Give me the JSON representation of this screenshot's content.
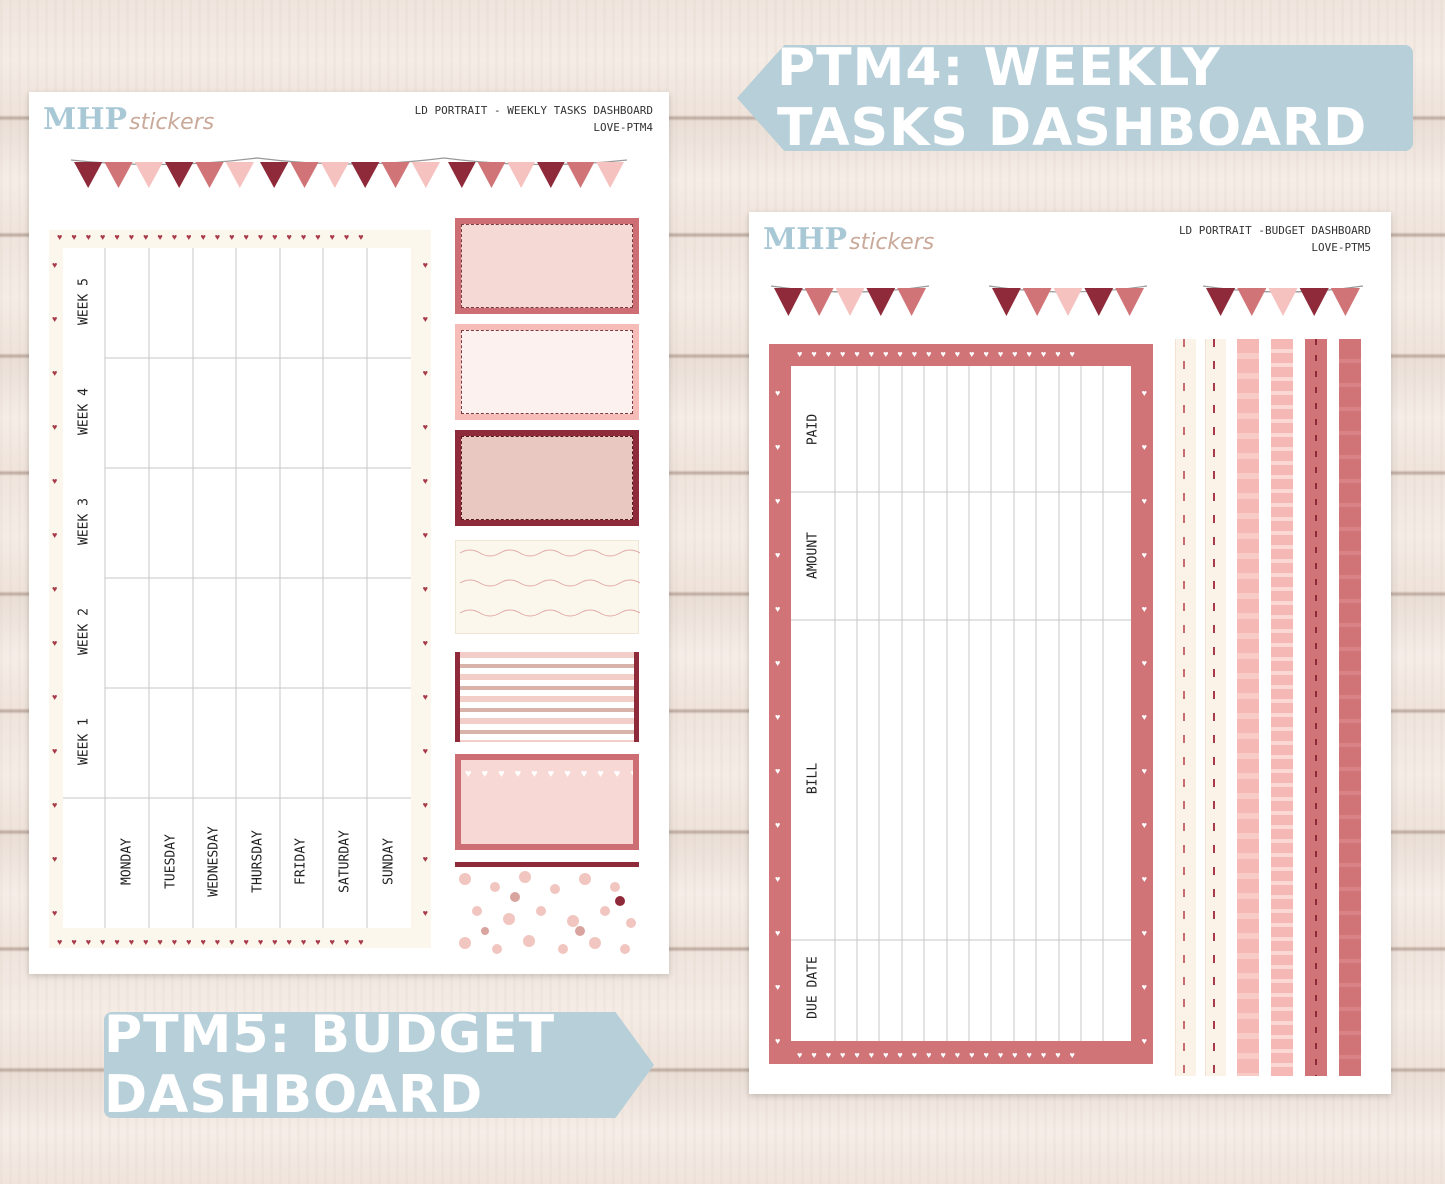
{
  "banners": {
    "ptm4": "PTM4: WEEKLY TASKS DASHBOARD",
    "ptm5": "PTM5: BUDGET DASHBOARD"
  },
  "colors": {
    "banner": "#b6cfd8",
    "rose": "#d07478",
    "wine": "#8e2a3a",
    "blush": "#f5c2c0",
    "cream": "#fbf7ec"
  },
  "sheet1": {
    "logo_main": "MHP",
    "logo_script": "stickers",
    "title_line1": "LD PORTRAIT - WEEKLY TASKS DASHBOARD",
    "title_line2": "LOVE-PTM4",
    "weeks": [
      "WEEK 5",
      "WEEK 4",
      "WEEK 3",
      "WEEK 2",
      "WEEK 1"
    ],
    "days": [
      "MONDAY",
      "TUESDAY",
      "WEDNESDAY",
      "THURSDAY",
      "FRIDAY",
      "SATURDAY",
      "SUNDAY"
    ]
  },
  "sheet2": {
    "logo_main": "MHP",
    "logo_script": "stickers",
    "title_line1": "LD PORTRAIT -BUDGET DASHBOARD",
    "title_line2": "LOVE-PTM5",
    "columns": [
      "PAID",
      "AMOUNT",
      "BILL",
      "DUE DATE"
    ]
  }
}
